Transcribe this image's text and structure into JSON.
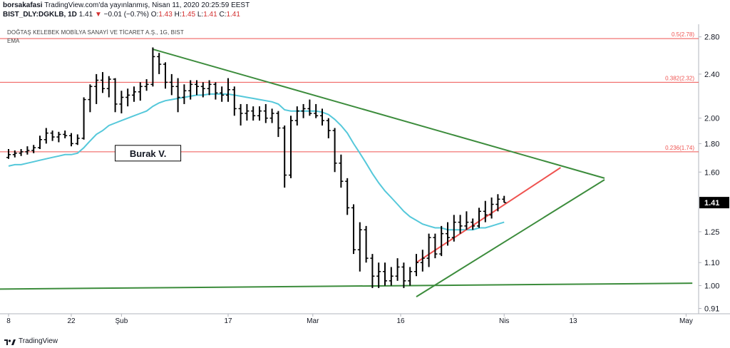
{
  "header": {
    "user": "borsakafasi",
    "published": "TradingView.com'da yayınlanmış, Nisan 11, 2020 20:25:59 EEST",
    "ticker": "BIST_DLY:DGKLB, 1D",
    "last": "1.41",
    "change_arrow": "▼",
    "change": "−0.01 (−0.7%)",
    "open_label": "O:",
    "open": "1.43",
    "high_label": "H:",
    "high": "1.45",
    "low_label": "L:",
    "low": "1.41",
    "close_label": "C:",
    "close": "1.41"
  },
  "symbol_title": "DOĞTAŞ KELEBEK MOBİLYA SANAYİ VE TİCARET A.Ş., 1G, BIST",
  "indicator_label": "EMA",
  "footer": {
    "brand": "TradingView"
  },
  "colors": {
    "ema": "#55c8da",
    "trend": "#3c8c3c",
    "fib": "#ef5350",
    "channel": "#ef5350",
    "bars": "#000000",
    "price_tag": "#000000"
  },
  "chart_data": {
    "type": "bar",
    "scale": "log",
    "ylim": [
      0.89,
      2.95
    ],
    "y_ticks": [
      "2.80",
      "2.40",
      "2.00",
      "1.80",
      "1.60",
      "1.41",
      "1.25",
      "1.10",
      "1.00",
      "0.91"
    ],
    "x_ticks": [
      {
        "label": "8",
        "pos": 0.0
      },
      {
        "label": "22",
        "pos": 10.0
      },
      {
        "label": "Şub",
        "pos": 18.0
      },
      {
        "label": "17",
        "pos": 35.0
      },
      {
        "label": "Mar",
        "pos": 48.5
      },
      {
        "label": "16",
        "pos": 62.5
      },
      {
        "label": "Nis",
        "pos": 79.0
      },
      {
        "label": "13",
        "pos": 90.0
      },
      {
        "label": "May",
        "pos": 108.0
      }
    ],
    "last_price": "1.41",
    "fib_levels": [
      {
        "label": "0.5(2.78)",
        "value": 2.78
      },
      {
        "label": "0.382(2.32)",
        "value": 2.32
      },
      {
        "label": "0.236(1.74)",
        "value": 1.74
      }
    ],
    "annotation": "Burak V.",
    "ohlc": [
      [
        1.7,
        1.76,
        1.69,
        1.72
      ],
      [
        1.72,
        1.75,
        1.7,
        1.73
      ],
      [
        1.73,
        1.76,
        1.71,
        1.74
      ],
      [
        1.74,
        1.78,
        1.72,
        1.75
      ],
      [
        1.75,
        1.79,
        1.73,
        1.77
      ],
      [
        1.77,
        1.86,
        1.76,
        1.83
      ],
      [
        1.83,
        1.92,
        1.8,
        1.88
      ],
      [
        1.88,
        1.9,
        1.82,
        1.85
      ],
      [
        1.85,
        1.89,
        1.81,
        1.87
      ],
      [
        1.87,
        1.9,
        1.84,
        1.86
      ],
      [
        1.86,
        1.88,
        1.78,
        1.8
      ],
      [
        1.8,
        1.87,
        1.79,
        1.84
      ],
      [
        1.84,
        2.18,
        1.83,
        2.16
      ],
      [
        2.16,
        2.3,
        2.05,
        2.28
      ],
      [
        2.28,
        2.4,
        2.12,
        2.34
      ],
      [
        2.34,
        2.42,
        2.22,
        2.26
      ],
      [
        2.26,
        2.38,
        2.18,
        2.35
      ],
      [
        2.35,
        2.36,
        2.05,
        2.12
      ],
      [
        2.12,
        2.24,
        2.04,
        2.18
      ],
      [
        2.18,
        2.26,
        2.1,
        2.2
      ],
      [
        2.2,
        2.28,
        2.14,
        2.23
      ],
      [
        2.23,
        2.32,
        2.15,
        2.28
      ],
      [
        2.28,
        2.35,
        2.24,
        2.3
      ],
      [
        2.3,
        2.68,
        2.28,
        2.58
      ],
      [
        2.58,
        2.62,
        2.4,
        2.5
      ],
      [
        2.5,
        2.52,
        2.26,
        2.32
      ],
      [
        2.32,
        2.4,
        2.2,
        2.28
      ],
      [
        2.28,
        2.36,
        2.05,
        2.18
      ],
      [
        2.18,
        2.3,
        2.12,
        2.24
      ],
      [
        2.24,
        2.34,
        2.16,
        2.3
      ],
      [
        2.3,
        2.34,
        2.2,
        2.28
      ],
      [
        2.28,
        2.32,
        2.18,
        2.26
      ],
      [
        2.26,
        2.34,
        2.2,
        2.3
      ],
      [
        2.3,
        2.32,
        2.16,
        2.22
      ],
      [
        2.22,
        2.28,
        2.14,
        2.2
      ],
      [
        2.2,
        2.36,
        2.14,
        2.25
      ],
      [
        2.25,
        2.28,
        2.02,
        2.08
      ],
      [
        2.08,
        2.12,
        1.94,
        2.04
      ],
      [
        2.04,
        2.12,
        1.98,
        2.06
      ],
      [
        2.06,
        2.1,
        1.98,
        2.02
      ],
      [
        2.02,
        2.1,
        1.98,
        2.06
      ],
      [
        2.06,
        2.12,
        1.96,
        2.0
      ],
      [
        2.0,
        2.08,
        1.96,
        2.04
      ],
      [
        2.04,
        2.06,
        1.85,
        1.92
      ],
      [
        1.92,
        1.94,
        1.5,
        1.58
      ],
      [
        1.58,
        2.02,
        1.56,
        1.98
      ],
      [
        1.98,
        2.1,
        1.94,
        2.06
      ],
      [
        2.06,
        2.12,
        2.0,
        2.08
      ],
      [
        2.08,
        2.16,
        2.02,
        2.04
      ],
      [
        2.04,
        2.12,
        2.0,
        2.02
      ],
      [
        2.02,
        2.08,
        1.94,
        1.98
      ],
      [
        1.98,
        2.0,
        1.84,
        1.9
      ],
      [
        1.9,
        1.92,
        1.6,
        1.66
      ],
      [
        1.66,
        1.72,
        1.5,
        1.54
      ],
      [
        1.54,
        1.56,
        1.34,
        1.38
      ],
      [
        1.38,
        1.4,
        1.14,
        1.16
      ],
      [
        1.16,
        1.3,
        1.06,
        1.26
      ],
      [
        1.26,
        1.28,
        1.1,
        1.12
      ],
      [
        1.12,
        1.14,
        0.99,
        1.04
      ],
      [
        1.04,
        1.1,
        0.99,
        1.06
      ],
      [
        1.06,
        1.1,
        1.0,
        1.02
      ],
      [
        1.02,
        1.08,
        1.0,
        1.04
      ],
      [
        1.04,
        1.12,
        1.02,
        1.08
      ],
      [
        1.08,
        1.1,
        0.99,
        1.02
      ],
      [
        1.02,
        1.08,
        1.0,
        1.06
      ],
      [
        1.06,
        1.14,
        1.04,
        1.1
      ],
      [
        1.1,
        1.16,
        1.06,
        1.12
      ],
      [
        1.12,
        1.24,
        1.08,
        1.22
      ],
      [
        1.22,
        1.24,
        1.12,
        1.14
      ],
      [
        1.14,
        1.28,
        1.13,
        1.24
      ],
      [
        1.24,
        1.3,
        1.18,
        1.22
      ],
      [
        1.22,
        1.34,
        1.2,
        1.3
      ],
      [
        1.3,
        1.34,
        1.24,
        1.28
      ],
      [
        1.28,
        1.36,
        1.26,
        1.3
      ],
      [
        1.3,
        1.32,
        1.26,
        1.28
      ],
      [
        1.28,
        1.38,
        1.27,
        1.36
      ],
      [
        1.36,
        1.42,
        1.3,
        1.34
      ],
      [
        1.34,
        1.44,
        1.32,
        1.4
      ],
      [
        1.4,
        1.46,
        1.36,
        1.43
      ],
      [
        1.43,
        1.45,
        1.41,
        1.41
      ]
    ],
    "ema": [
      1.64,
      1.65,
      1.65,
      1.66,
      1.67,
      1.68,
      1.69,
      1.7,
      1.71,
      1.72,
      1.72,
      1.73,
      1.77,
      1.82,
      1.87,
      1.9,
      1.94,
      1.96,
      1.98,
      2.0,
      2.02,
      2.04,
      2.06,
      2.1,
      2.13,
      2.15,
      2.16,
      2.17,
      2.18,
      2.19,
      2.2,
      2.2,
      2.21,
      2.21,
      2.21,
      2.21,
      2.2,
      2.19,
      2.18,
      2.17,
      2.16,
      2.15,
      2.14,
      2.12,
      2.07,
      2.06,
      2.06,
      2.06,
      2.06,
      2.06,
      2.05,
      2.03,
      1.99,
      1.94,
      1.88,
      1.8,
      1.73,
      1.66,
      1.59,
      1.53,
      1.48,
      1.44,
      1.4,
      1.36,
      1.33,
      1.31,
      1.29,
      1.28,
      1.27,
      1.27,
      1.26,
      1.26,
      1.26,
      1.26,
      1.26,
      1.27,
      1.27,
      1.28,
      1.29,
      1.3
    ],
    "trendlines": [
      {
        "name": "falling-resistance",
        "from": [
          23,
          2.66
        ],
        "to": [
          95,
          1.56
        ]
      },
      {
        "name": "horizontal-support",
        "from": [
          -5,
          0.985
        ],
        "to": [
          109,
          1.01
        ]
      },
      {
        "name": "rising-support",
        "from": [
          65,
          0.955
        ],
        "to": [
          95,
          1.55
        ]
      },
      {
        "name": "rising-channel",
        "from": [
          65,
          1.1
        ],
        "to": [
          88,
          1.63
        ]
      }
    ]
  }
}
